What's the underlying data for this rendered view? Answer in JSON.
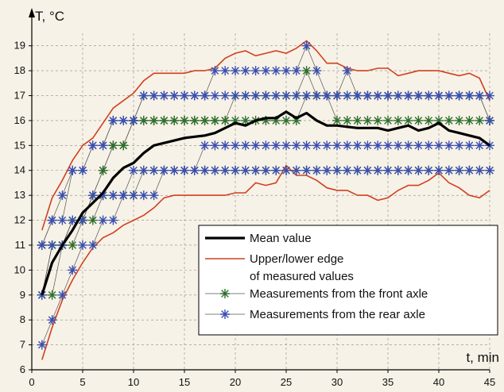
{
  "chart_data": {
    "type": "line",
    "xlabel": "t, min",
    "ylabel": "T, °C",
    "xlim": [
      0,
      45
    ],
    "ylim": [
      6,
      19.5
    ],
    "xticks": [
      0,
      5,
      10,
      15,
      20,
      25,
      30,
      35,
      40,
      45
    ],
    "yticks": [
      6,
      7,
      8,
      9,
      10,
      11,
      12,
      13,
      14,
      15,
      16,
      17,
      18,
      19
    ],
    "grid": true,
    "legend_position": "bottom-right",
    "colors": {
      "background": "#f7f2e7",
      "grid": "#8a8a8a",
      "mean": "#000000",
      "edge": "#d04020",
      "front": "#2e6e2e",
      "rear": "#3a4fb0"
    },
    "legend": [
      {
        "label": "Mean value",
        "series": "mean"
      },
      {
        "label": "Upper/lower edge",
        "label2": "of measured values",
        "series": "edge"
      },
      {
        "label": "Measurements from the front axle",
        "series": "front"
      },
      {
        "label": "Measurements from the rear axle",
        "series": "rear"
      }
    ],
    "series": [
      {
        "key": "mean",
        "name": "Mean value",
        "x": [
          1,
          2,
          3,
          4,
          5,
          6,
          7,
          8,
          9,
          10,
          11,
          12,
          13,
          14,
          15,
          16,
          17,
          18,
          19,
          20,
          21,
          22,
          23,
          24,
          25,
          26,
          27,
          28,
          29,
          30,
          31,
          32,
          33,
          34,
          35,
          36,
          37,
          38,
          39,
          40,
          41,
          42,
          43,
          44,
          45
        ],
        "values": [
          9.0,
          10.3,
          11.0,
          11.6,
          12.3,
          12.7,
          13.1,
          13.7,
          14.1,
          14.3,
          14.7,
          15.0,
          15.1,
          15.2,
          15.3,
          15.35,
          15.4,
          15.5,
          15.7,
          15.9,
          15.8,
          16.0,
          16.1,
          16.1,
          16.35,
          16.1,
          16.3,
          16.0,
          15.8,
          15.8,
          15.75,
          15.7,
          15.7,
          15.7,
          15.6,
          15.7,
          15.8,
          15.6,
          15.7,
          15.9,
          15.6,
          15.5,
          15.4,
          15.3,
          15.0
        ]
      },
      {
        "key": "edge_upper",
        "name": "Upper/lower edge of measured values",
        "x": [
          1,
          2,
          3,
          4,
          5,
          6,
          7,
          8,
          9,
          10,
          11,
          12,
          13,
          14,
          15,
          16,
          17,
          18,
          19,
          20,
          21,
          22,
          23,
          24,
          25,
          26,
          27,
          28,
          29,
          30,
          31,
          32,
          33,
          34,
          35,
          36,
          37,
          38,
          39,
          40,
          41,
          42,
          43,
          44,
          45
        ],
        "values": [
          11.6,
          12.9,
          13.6,
          14.4,
          15.0,
          15.3,
          15.9,
          16.5,
          16.8,
          17.1,
          17.6,
          17.9,
          17.9,
          17.9,
          17.9,
          18.0,
          18.0,
          18.1,
          18.5,
          18.7,
          18.8,
          18.6,
          18.7,
          18.8,
          18.7,
          18.9,
          19.2,
          18.8,
          18.3,
          18.3,
          18.1,
          18.0,
          18.0,
          18.1,
          18.1,
          17.8,
          17.9,
          18.0,
          18.0,
          18.0,
          17.9,
          17.8,
          17.9,
          17.7,
          16.8
        ]
      },
      {
        "key": "edge_lower",
        "name": "Upper/lower edge of measured values",
        "x": [
          1,
          2,
          3,
          4,
          5,
          6,
          7,
          8,
          9,
          10,
          11,
          12,
          13,
          14,
          15,
          16,
          17,
          18,
          19,
          20,
          21,
          22,
          23,
          24,
          25,
          26,
          27,
          28,
          29,
          30,
          31,
          32,
          33,
          34,
          35,
          36,
          37,
          38,
          39,
          40,
          41,
          42,
          43,
          44,
          45
        ],
        "values": [
          6.4,
          7.7,
          8.8,
          9.6,
          10.3,
          10.9,
          11.3,
          11.5,
          11.8,
          12.0,
          12.2,
          12.5,
          12.9,
          13.0,
          13.0,
          13.0,
          13.0,
          13.0,
          13.0,
          13.1,
          13.1,
          13.5,
          13.4,
          13.5,
          14.2,
          13.8,
          13.8,
          13.6,
          13.3,
          13.2,
          13.2,
          13.0,
          13.0,
          12.8,
          12.9,
          13.2,
          13.4,
          13.4,
          13.6,
          13.9,
          13.5,
          13.3,
          13.0,
          12.9,
          13.2
        ]
      },
      {
        "key": "front_1",
        "name": "Measurements from the front axle",
        "x": [
          1,
          2,
          3,
          4,
          5,
          6,
          7,
          8,
          9,
          10,
          11,
          12,
          13,
          14,
          15,
          16,
          17,
          18,
          19,
          20,
          21,
          22,
          23,
          24,
          25,
          26,
          27,
          28,
          29,
          30,
          31,
          32,
          33,
          34,
          35,
          36,
          37,
          38,
          39,
          40,
          41,
          42,
          43,
          44,
          45
        ],
        "values": [
          9,
          9,
          11,
          11,
          12,
          12,
          13,
          13,
          13,
          13,
          14,
          14,
          14,
          14,
          14,
          14,
          14,
          14,
          14,
          14,
          14,
          14,
          14,
          14,
          14,
          14,
          14,
          14,
          14,
          14,
          14,
          14,
          14,
          14,
          14,
          14,
          14,
          14,
          14,
          14,
          14,
          14,
          14,
          14,
          14
        ]
      },
      {
        "key": "front_2",
        "name": "Measurements from the front axle",
        "x": [
          1,
          2,
          3,
          4,
          5,
          6,
          7,
          8,
          9,
          10,
          11,
          12,
          13,
          14,
          15,
          16,
          17,
          18,
          19,
          20,
          21,
          22,
          23,
          24,
          25,
          26,
          27,
          28,
          29,
          30,
          31,
          32,
          33,
          34,
          35,
          36,
          37,
          38,
          39,
          40,
          41,
          42,
          43,
          44,
          45
        ],
        "values": [
          9,
          11,
          11,
          12,
          12,
          13,
          14,
          15,
          15,
          16,
          16,
          16,
          16,
          16,
          16,
          16,
          16,
          16,
          16,
          16,
          16,
          16,
          16,
          16,
          16,
          16,
          17,
          17,
          17,
          16,
          16,
          16,
          16,
          16,
          16,
          16,
          16,
          16,
          16,
          16,
          16,
          16,
          16,
          16,
          16
        ]
      },
      {
        "key": "front_3",
        "name": "Measurements from the front axle",
        "x": [
          1,
          2,
          3,
          4,
          5,
          6,
          7,
          8,
          9,
          10,
          11,
          12,
          13,
          14,
          15,
          16,
          17,
          18,
          19,
          20,
          21,
          22,
          23,
          24,
          25,
          26,
          27,
          28,
          29,
          30,
          31,
          32,
          33,
          34,
          35,
          36,
          37,
          38,
          39,
          40,
          41,
          42,
          43,
          44,
          45
        ],
        "values": [
          11,
          11,
          11,
          12,
          12,
          13,
          14,
          15,
          15,
          16,
          16,
          16,
          16,
          16,
          16,
          16,
          16,
          16,
          16,
          17,
          17,
          17,
          17,
          17,
          17,
          17,
          18,
          17,
          17,
          17,
          17,
          17,
          17,
          17,
          17,
          17,
          17,
          17,
          17,
          17,
          17,
          17,
          17,
          17,
          16
        ]
      },
      {
        "key": "rear_1",
        "name": "Measurements from the rear axle",
        "x": [
          1,
          2,
          3,
          4,
          5,
          6,
          7,
          8,
          9,
          10,
          11,
          12,
          13,
          14,
          15,
          16,
          17,
          18,
          19,
          20,
          21,
          22,
          23,
          24,
          25,
          26,
          27,
          28,
          29,
          30,
          31,
          32,
          33,
          34,
          35,
          36,
          37,
          38,
          39,
          40,
          41,
          42,
          43,
          44,
          45
        ],
        "values": [
          7,
          8,
          9,
          10,
          11,
          11,
          12,
          12,
          13,
          13,
          13,
          13,
          14,
          14,
          14,
          14,
          14,
          14,
          14,
          14,
          14,
          14,
          14,
          14,
          14,
          14,
          14,
          14,
          14,
          14,
          14,
          14,
          14,
          14,
          14,
          14,
          14,
          14,
          14,
          14,
          14,
          14,
          14,
          14,
          14
        ]
      },
      {
        "key": "rear_2",
        "name": "Measurements from the rear axle",
        "x": [
          1,
          2,
          3,
          4,
          5,
          6,
          7,
          8,
          9,
          10,
          11,
          12,
          13,
          14,
          15,
          16,
          17,
          18,
          19,
          20,
          21,
          22,
          23,
          24,
          25,
          26,
          27,
          28,
          29,
          30,
          31,
          32,
          33,
          34,
          35,
          36,
          37,
          38,
          39,
          40,
          41,
          42,
          43,
          44,
          45
        ],
        "values": [
          11,
          12,
          13,
          14,
          14,
          15,
          15,
          16,
          16,
          16,
          17,
          17,
          17,
          17,
          17,
          17,
          17,
          17,
          17,
          17,
          17,
          17,
          17,
          17,
          17,
          17,
          17,
          17,
          17,
          17,
          17,
          17,
          17,
          17,
          17,
          17,
          17,
          17,
          17,
          17,
          17,
          17,
          17,
          17,
          17
        ]
      },
      {
        "key": "rear_3",
        "name": "Measurements from the rear axle",
        "x": [
          1,
          2,
          3,
          4,
          5,
          6,
          7,
          8,
          9,
          10,
          11,
          12,
          13,
          14,
          15,
          16,
          17,
          18,
          19,
          20,
          21,
          22,
          23,
          24,
          25,
          26,
          27,
          28,
          29,
          30,
          31,
          32,
          33,
          34,
          35,
          36,
          37,
          38,
          39,
          40,
          41,
          42,
          43,
          44,
          45
        ],
        "values": [
          11,
          12,
          12,
          14,
          14,
          15,
          15,
          16,
          16,
          16,
          17,
          17,
          17,
          17,
          17,
          17,
          17,
          18,
          18,
          18,
          18,
          18,
          18,
          18,
          18,
          18,
          19,
          18,
          17,
          17,
          18,
          17,
          17,
          17,
          17,
          17,
          17,
          17,
          17,
          17,
          17,
          17,
          17,
          17,
          16
        ]
      },
      {
        "key": "rear_4",
        "name": "Measurements from the rear axle",
        "x": [
          1,
          2,
          3,
          4,
          5,
          6,
          7,
          8,
          9,
          10,
          11,
          12,
          13,
          14,
          15,
          16,
          17,
          18,
          19,
          20,
          21,
          22,
          23,
          24,
          25,
          26,
          27,
          28,
          29,
          30,
          31,
          32,
          33,
          34,
          35,
          36,
          37,
          38,
          39,
          40,
          41,
          42,
          43,
          44,
          45
        ],
        "values": [
          9,
          11,
          11,
          12,
          12,
          13,
          13,
          13,
          13,
          14,
          14,
          14,
          14,
          14,
          14,
          14,
          15,
          15,
          15,
          15,
          15,
          15,
          15,
          15,
          15,
          15,
          15,
          15,
          15,
          15,
          15,
          15,
          15,
          15,
          15,
          15,
          15,
          15,
          15,
          15,
          15,
          15,
          15,
          15,
          15
        ]
      }
    ]
  }
}
